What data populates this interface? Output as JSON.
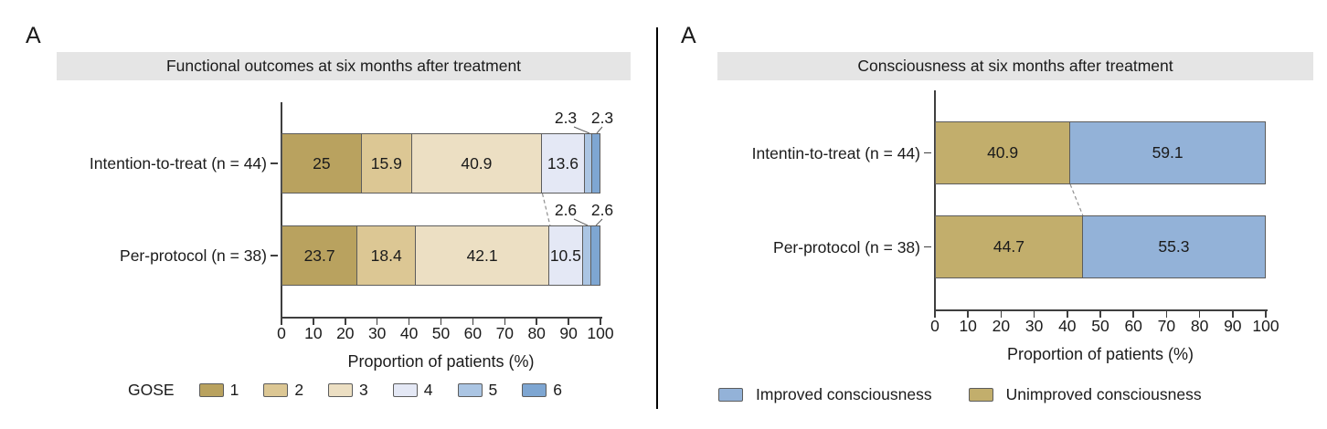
{
  "colors": {
    "title_bg": "#e5e5e5",
    "axis": "#3f3f3f",
    "text": "#1b1b1b",
    "segment_border": "#5c5c5c",
    "connector": "#909090",
    "divider": "#000000"
  },
  "chart_data": [
    {
      "type": "bar",
      "orientation": "horizontal",
      "stacked": true,
      "panel_label": "A",
      "title": "Functional outcomes at six months after treatment",
      "xlabel": "Proportion of patients (%)",
      "xlim": [
        0,
        100
      ],
      "x_ticks": [
        0,
        10,
        20,
        30,
        40,
        50,
        60,
        70,
        80,
        90,
        100
      ],
      "grid": false,
      "legend_position": "bottom",
      "categories": [
        "Intention-to-treat (n = 44)",
        "Per-protocol (n = 38)"
      ],
      "series": [
        {
          "name": "1",
          "color": "#b9a25f",
          "values": [
            25,
            23.7
          ]
        },
        {
          "name": "2",
          "color": "#dcc794",
          "values": [
            15.9,
            18.4
          ]
        },
        {
          "name": "3",
          "color": "#ecdfc3",
          "values": [
            40.9,
            42.1
          ]
        },
        {
          "name": "4",
          "color": "#e4e8f5",
          "values": [
            13.6,
            10.5
          ]
        },
        {
          "name": "5",
          "color": "#abc5e3",
          "values": [
            2.3,
            2.6
          ]
        },
        {
          "name": "6",
          "color": "#7ea6d2",
          "values": [
            2.3,
            2.6
          ]
        }
      ],
      "legend_title": "GOSE",
      "legend": [
        {
          "label": "1",
          "color": "#b9a25f"
        },
        {
          "label": "2",
          "color": "#dcc794"
        },
        {
          "label": "3",
          "color": "#ecdfc3"
        },
        {
          "label": "4",
          "color": "#e4e8f5"
        },
        {
          "label": "5",
          "color": "#abc5e3"
        },
        {
          "label": "6",
          "color": "#7ea6d2"
        }
      ],
      "small_label_threshold": 4,
      "connector_after_series": 3
    },
    {
      "type": "bar",
      "orientation": "horizontal",
      "stacked": true,
      "panel_label": "A",
      "title": "Consciousness at six months after treatment",
      "xlabel": "Proportion of patients (%)",
      "xlim": [
        0,
        100
      ],
      "x_ticks": [
        0,
        10,
        20,
        30,
        40,
        50,
        60,
        70,
        80,
        90,
        100
      ],
      "grid": false,
      "legend_position": "bottom",
      "categories": [
        "Intentin-to-treat (n = 44)",
        "Per-protocol (n = 38)"
      ],
      "series": [
        {
          "name": "Unimproved consciousness",
          "color": "#c2ae6c",
          "values": [
            40.9,
            44.7
          ]
        },
        {
          "name": "Improved consciousness",
          "color": "#93b2d8",
          "values": [
            59.1,
            55.3
          ]
        }
      ],
      "legend": [
        {
          "label": "Improved consciousness",
          "color": "#93b2d8"
        },
        {
          "label": "Unimproved consciousness",
          "color": "#c2ae6c"
        }
      ],
      "small_label_threshold": 0,
      "connector_after_series": 1
    }
  ]
}
